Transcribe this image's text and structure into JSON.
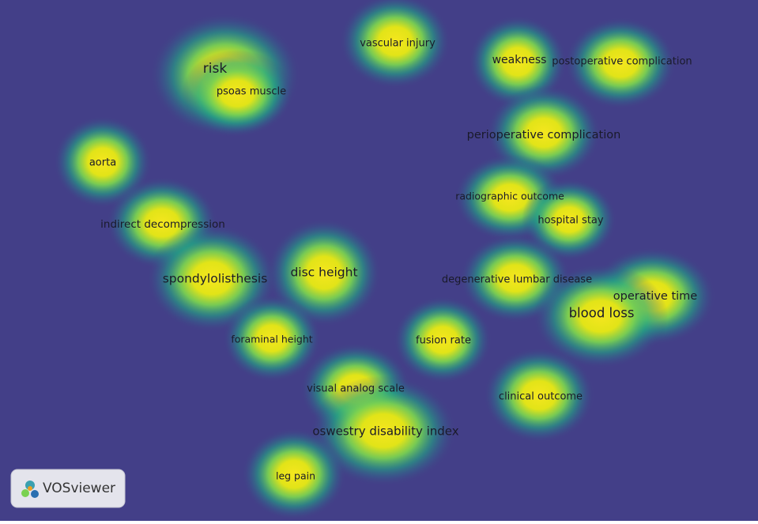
{
  "keywords": [
    "risk",
    "psoas muscle",
    "vascular injury",
    "weakness",
    "postoperative complication",
    "perioperative complication",
    "aorta",
    "radiographic outcome",
    "hospital stay",
    "indirect decompression",
    "spondylolisthesis",
    "disc height",
    "degenerative lumbar disease",
    "operative time",
    "blood loss",
    "foraminal height",
    "fusion rate",
    "visual analog scale",
    "clinical outcome",
    "oswestry disability index",
    "leg pain"
  ],
  "logo": {
    "label": "VOSviewer"
  }
}
